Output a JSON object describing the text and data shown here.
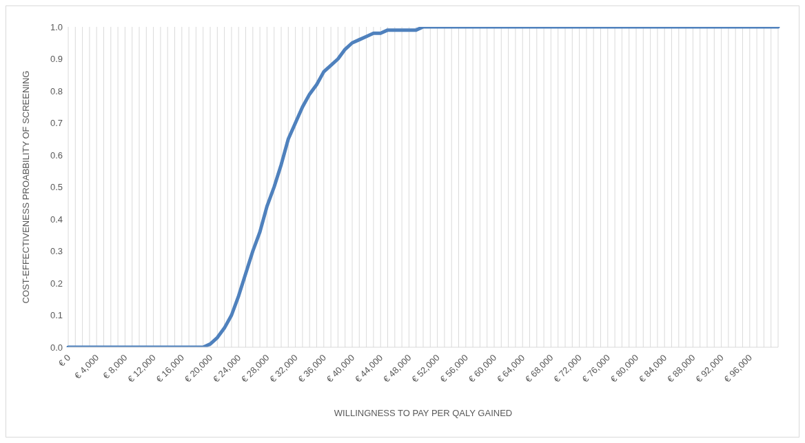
{
  "chart_data": {
    "type": "line",
    "xlabel": "WILLINGNESS TO PAY PER QALY GAINED",
    "ylabel": "COST-EFFECTIVENESS PROABBILITY OF SCREENING",
    "categories": [
      "€ 0",
      null,
      null,
      null,
      "€ 4,000",
      null,
      null,
      null,
      "€ 8,000",
      null,
      null,
      null,
      "€ 12,000",
      null,
      null,
      null,
      "€ 16,000",
      null,
      null,
      null,
      "€ 20,000",
      null,
      null,
      null,
      "€ 24,000",
      null,
      null,
      null,
      "€ 28,000",
      null,
      null,
      null,
      "€ 32,000",
      null,
      null,
      null,
      "€ 36,000",
      null,
      null,
      null,
      "€ 40,000",
      null,
      null,
      null,
      "€ 44,000",
      null,
      null,
      null,
      "€ 48,000",
      null,
      null,
      null,
      "€ 52,000",
      null,
      null,
      null,
      "€ 56,000",
      null,
      null,
      null,
      "€ 60,000",
      null,
      null,
      null,
      "€ 64,000",
      null,
      null,
      null,
      "€ 68,000",
      null,
      null,
      null,
      "€ 72,000",
      null,
      null,
      null,
      "€ 76,000",
      null,
      null,
      null,
      "€ 80,000",
      null,
      null,
      null,
      "€ 84,000",
      null,
      null,
      null,
      "€ 88,000",
      null,
      null,
      null,
      "€ 92,000",
      null,
      null,
      null,
      "€ 96,000",
      null,
      null,
      null,
      null
    ],
    "series": [
      {
        "color": "#4f81bd",
        "values": [
          0,
          0,
          0,
          0,
          0,
          0,
          0,
          0,
          0,
          0,
          0,
          0,
          0,
          0,
          0,
          0,
          0,
          0,
          0,
          0,
          0.01,
          0.03,
          0.06,
          0.1,
          0.16,
          0.23,
          0.3,
          0.36,
          0.44,
          0.5,
          0.57,
          0.65,
          0.7,
          0.75,
          0.79,
          0.82,
          0.86,
          0.88,
          0.9,
          0.93,
          0.95,
          0.96,
          0.97,
          0.98,
          0.98,
          0.99,
          0.99,
          0.99,
          0.99,
          0.99,
          1,
          1,
          1,
          1,
          1,
          1,
          1,
          1,
          1,
          1,
          1,
          1,
          1,
          1,
          1,
          1,
          1,
          1,
          1,
          1,
          1,
          1,
          1,
          1,
          1,
          1,
          1,
          1,
          1,
          1,
          1,
          1,
          1,
          1,
          1,
          1,
          1,
          1,
          1,
          1,
          1,
          1,
          1,
          1,
          1,
          1,
          1,
          1,
          1,
          1,
          1
        ]
      }
    ],
    "ylim": [
      0,
      1
    ],
    "yticks": [
      {
        "value": 0,
        "label": "0.0"
      },
      {
        "value": 0.1,
        "label": "0.1"
      },
      {
        "value": 0.2,
        "label": "0.2"
      },
      {
        "value": 0.3,
        "label": "0.3"
      },
      {
        "value": 0.4,
        "label": "0.4"
      },
      {
        "value": 0.5,
        "label": "0.5"
      },
      {
        "value": 0.6,
        "label": "0.6"
      },
      {
        "value": 0.7,
        "label": "0.7"
      },
      {
        "value": 0.8,
        "label": "0.8"
      },
      {
        "value": 0.9,
        "label": "0.9"
      },
      {
        "value": 1,
        "label": "1.0"
      }
    ],
    "grid": "x",
    "line_style": "solid",
    "marker": "none"
  }
}
